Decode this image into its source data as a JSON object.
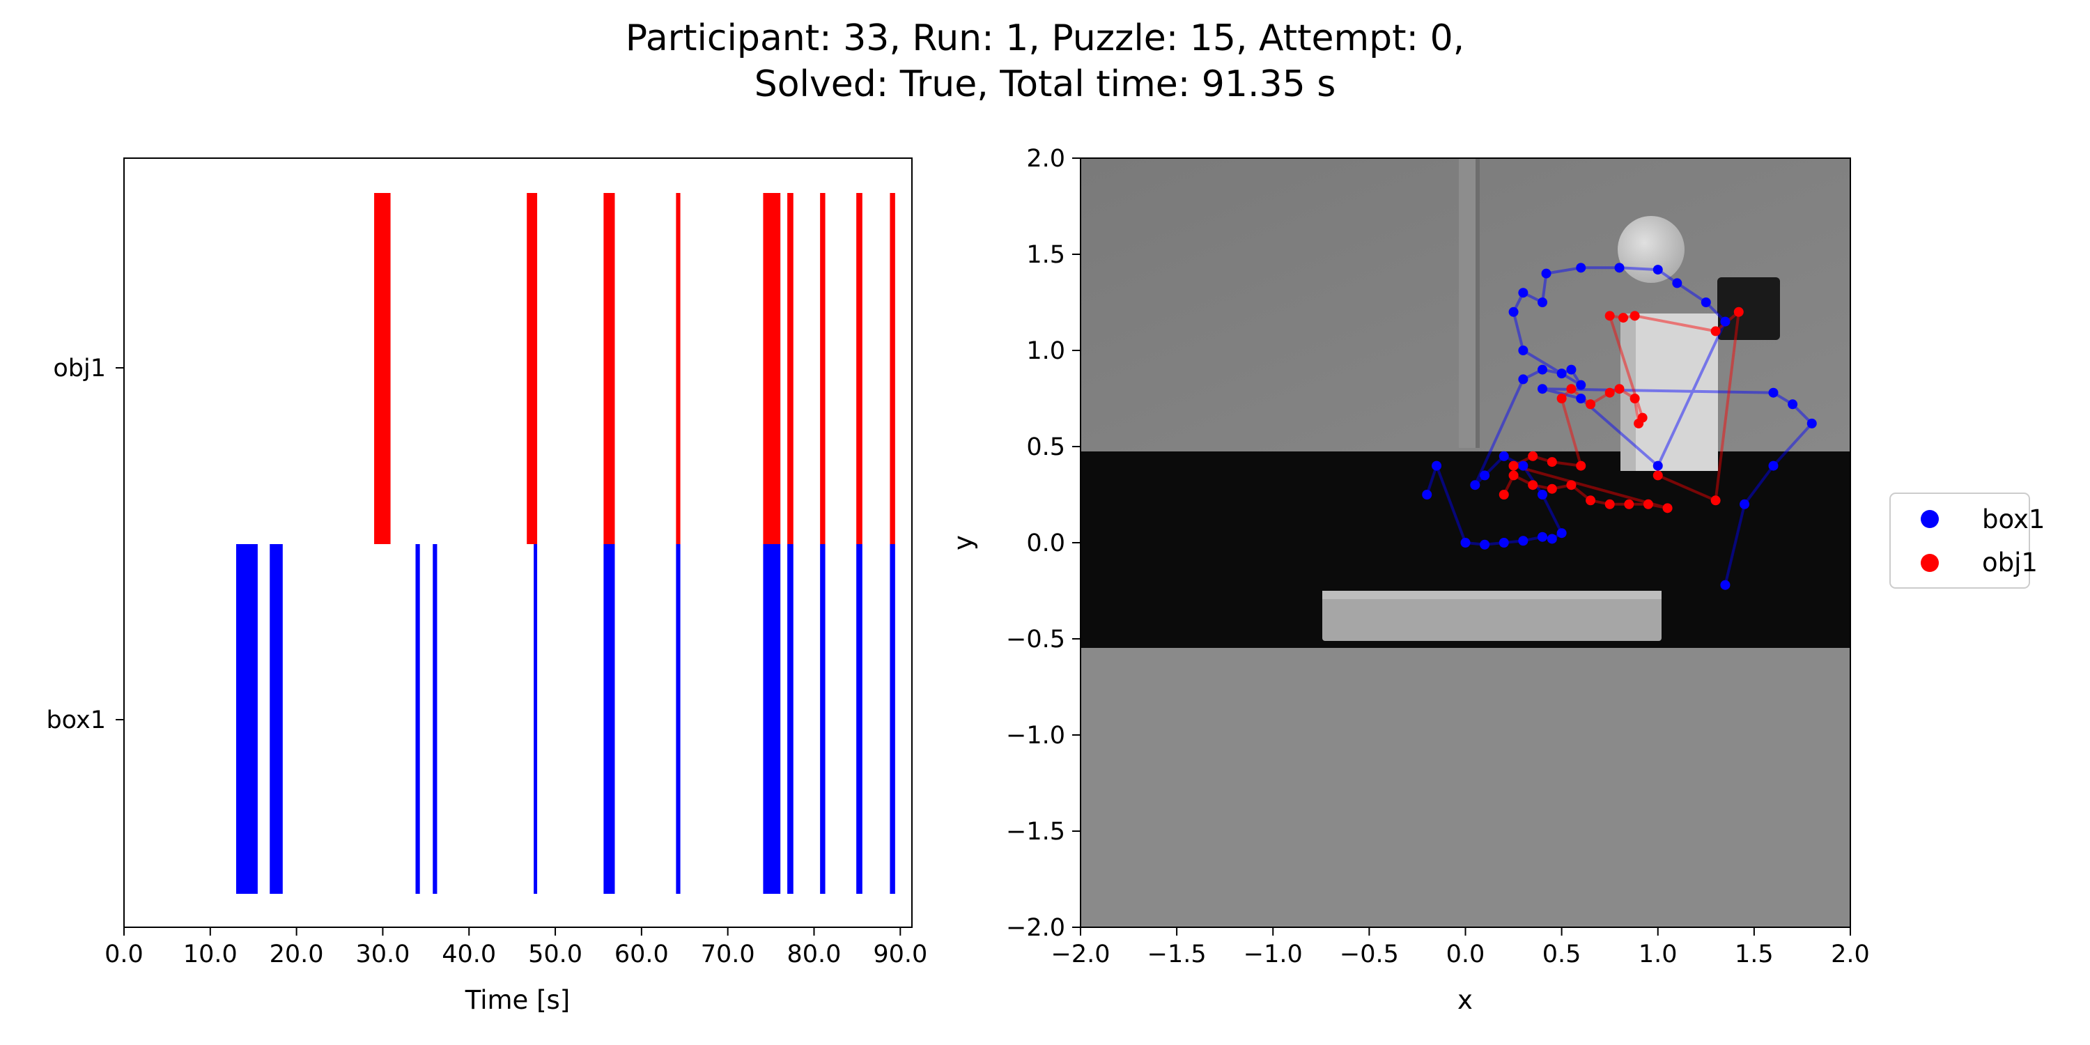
{
  "title": {
    "line1": "Participant: 33, Run: 1, Puzzle: 15, Attempt: 0,",
    "line2": "Solved: True, Total time: 91.35 s"
  },
  "chart_data": [
    {
      "type": "bar",
      "subtype": "event-timeline",
      "xlabel": "Time [s]",
      "ylabel": "",
      "xlim": [
        0,
        91.35
      ],
      "xticks": [
        0,
        10,
        20,
        30,
        40,
        50,
        60,
        70,
        80,
        90
      ],
      "xtick_labels": [
        "0.0",
        "10.0",
        "20.0",
        "30.0",
        "40.0",
        "50.0",
        "60.0",
        "70.0",
        "80.0",
        "90.0"
      ],
      "categories": [
        "box1",
        "obj1"
      ],
      "series": [
        {
          "name": "box1",
          "color": "#0000ff",
          "intervals": [
            [
              13.0,
              15.5
            ],
            [
              16.9,
              18.4
            ],
            [
              33.8,
              34.3
            ],
            [
              35.8,
              36.3
            ],
            [
              47.5,
              47.9
            ],
            [
              55.6,
              56.9
            ],
            [
              64.0,
              64.5
            ],
            [
              74.1,
              76.1
            ],
            [
              76.9,
              77.6
            ],
            [
              80.7,
              81.3
            ],
            [
              84.9,
              85.6
            ],
            [
              88.8,
              89.4
            ]
          ]
        },
        {
          "name": "obj1",
          "color": "#ff0000",
          "intervals": [
            [
              29.0,
              30.9
            ],
            [
              46.7,
              47.9
            ],
            [
              55.6,
              56.9
            ],
            [
              64.0,
              64.5
            ],
            [
              74.1,
              76.1
            ],
            [
              76.9,
              77.6
            ],
            [
              80.7,
              81.3
            ],
            [
              84.9,
              85.6
            ],
            [
              88.8,
              89.4
            ]
          ]
        }
      ]
    },
    {
      "type": "scatter",
      "subtype": "trajectory-over-image",
      "xlabel": "x",
      "ylabel": "y",
      "xlim": [
        -2.0,
        2.0
      ],
      "ylim": [
        -2.0,
        2.0
      ],
      "xticks": [
        -2.0,
        -1.5,
        -1.0,
        -0.5,
        0.0,
        0.5,
        1.0,
        1.5,
        2.0
      ],
      "xtick_labels": [
        "−2.0",
        "−1.5",
        "−1.0",
        "−0.5",
        "0.0",
        "0.5",
        "1.0",
        "1.5",
        "2.0"
      ],
      "yticks": [
        -2.0,
        -1.5,
        -1.0,
        -0.5,
        0.0,
        0.5,
        1.0,
        1.5,
        2.0
      ],
      "ytick_labels": [
        "−2.0",
        "−1.5",
        "−1.0",
        "−0.5",
        "0.0",
        "0.5",
        "1.0",
        "1.5",
        "2.0"
      ],
      "legend": {
        "placement": "outside-right",
        "entries": [
          "box1",
          "obj1"
        ]
      },
      "series": [
        {
          "name": "box1",
          "color": "#0000ff",
          "points": [
            [
              -0.2,
              0.25
            ],
            [
              -0.15,
              0.4
            ],
            [
              0.0,
              0.0
            ],
            [
              0.1,
              -0.01
            ],
            [
              0.2,
              0.0
            ],
            [
              0.3,
              0.01
            ],
            [
              0.4,
              0.03
            ],
            [
              0.45,
              0.02
            ],
            [
              0.5,
              0.05
            ],
            [
              0.4,
              0.25
            ],
            [
              0.3,
              0.4
            ],
            [
              0.2,
              0.45
            ],
            [
              0.1,
              0.35
            ],
            [
              0.05,
              0.3
            ],
            [
              0.3,
              0.85
            ],
            [
              0.4,
              0.9
            ],
            [
              0.5,
              0.88
            ],
            [
              0.55,
              0.9
            ],
            [
              0.6,
              0.82
            ],
            [
              0.3,
              1.0
            ],
            [
              0.25,
              1.2
            ],
            [
              0.3,
              1.3
            ],
            [
              0.4,
              1.25
            ],
            [
              0.42,
              1.4
            ],
            [
              0.6,
              1.43
            ],
            [
              0.8,
              1.43
            ],
            [
              1.0,
              1.42
            ],
            [
              1.1,
              1.35
            ],
            [
              1.25,
              1.25
            ],
            [
              1.35,
              1.15
            ],
            [
              1.0,
              0.4
            ],
            [
              0.6,
              0.75
            ],
            [
              0.4,
              0.8
            ],
            [
              1.6,
              0.78
            ],
            [
              1.7,
              0.72
            ],
            [
              1.8,
              0.62
            ],
            [
              1.6,
              0.4
            ],
            [
              1.45,
              0.2
            ],
            [
              1.35,
              -0.22
            ]
          ]
        },
        {
          "name": "obj1",
          "color": "#ff0000",
          "points": [
            [
              0.2,
              0.25
            ],
            [
              0.25,
              0.35
            ],
            [
              0.35,
              0.3
            ],
            [
              0.45,
              0.28
            ],
            [
              0.55,
              0.3
            ],
            [
              0.65,
              0.22
            ],
            [
              0.75,
              0.2
            ],
            [
              0.85,
              0.2
            ],
            [
              0.95,
              0.2
            ],
            [
              1.05,
              0.18
            ],
            [
              0.25,
              0.4
            ],
            [
              0.35,
              0.45
            ],
            [
              0.45,
              0.42
            ],
            [
              0.6,
              0.4
            ],
            [
              0.5,
              0.75
            ],
            [
              0.55,
              0.8
            ],
            [
              0.65,
              0.72
            ],
            [
              0.75,
              0.78
            ],
            [
              0.8,
              0.8
            ],
            [
              0.88,
              0.75
            ],
            [
              0.9,
              0.62
            ],
            [
              0.92,
              0.65
            ],
            [
              0.75,
              1.18
            ],
            [
              0.82,
              1.17
            ],
            [
              0.88,
              1.18
            ],
            [
              1.3,
              1.1
            ],
            [
              1.42,
              1.2
            ],
            [
              1.3,
              0.22
            ],
            [
              1.0,
              0.35
            ]
          ]
        }
      ]
    }
  ]
}
